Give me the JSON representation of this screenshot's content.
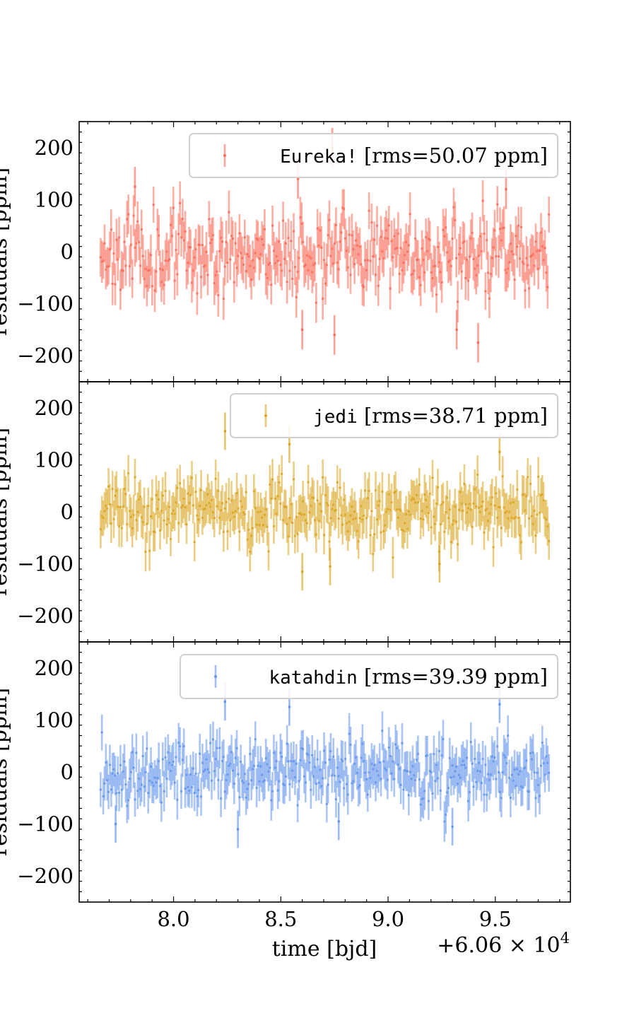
{
  "chart_data": {
    "type": "scatter",
    "layout": "three vertically stacked panels sharing the x-axis",
    "xlabel": "time [bjd]",
    "x_offset_label": "+6.06 × 10^4",
    "x_offset_text": {
      "base": "+6.06 × 10",
      "exponent": "4"
    },
    "xlim": [
      7.56,
      9.85
    ],
    "xticks": [
      8.0,
      8.5,
      9.0,
      9.5
    ],
    "xtick_labels": [
      "8.0",
      "8.5",
      "9.0",
      "9.5"
    ],
    "ylabel": "residuals [ppm]",
    "ylim": [
      -250,
      250
    ],
    "yticks": [
      -200,
      -100,
      0,
      100,
      200
    ],
    "ytick_labels": [
      "−200",
      "−100",
      "0",
      "100",
      "200"
    ],
    "legend_position": "upper right",
    "series_x_range": [
      7.66,
      9.75
    ],
    "points_per_series": 340,
    "panels": [
      {
        "name": "Eureka!",
        "legend_rms": "[rms=50.07 ppm]",
        "rms_ppm": 50.07,
        "color": "#ff6b5a",
        "seed": 11,
        "error_bar_ppm": 38,
        "outliers": [
          {
            "x": 8.74,
            "y": 200
          },
          {
            "x": 8.58,
            "y": 140
          },
          {
            "x": 8.75,
            "y": -160
          },
          {
            "x": 8.6,
            "y": -150
          },
          {
            "x": 9.42,
            "y": -175
          },
          {
            "x": 9.32,
            "y": -150
          },
          {
            "x": 7.82,
            "y": 125
          },
          {
            "x": 9.55,
            "y": 120
          }
        ]
      },
      {
        "name": "jedi",
        "legend_rms": "[rms=38.71 ppm]",
        "rms_ppm": 38.71,
        "color": "#daa520",
        "seed": 23,
        "error_bar_ppm": 36,
        "outliers": [
          {
            "x": 8.24,
            "y": 155
          },
          {
            "x": 8.54,
            "y": 130
          },
          {
            "x": 9.52,
            "y": 115
          },
          {
            "x": 8.6,
            "y": -115
          },
          {
            "x": 8.73,
            "y": -105
          },
          {
            "x": 9.24,
            "y": -100
          }
        ]
      },
      {
        "name": "katahdin",
        "legend_rms": "[rms=39.39 ppm]",
        "rms_ppm": 39.39,
        "color": "#6495ed",
        "seed": 37,
        "error_bar_ppm": 36,
        "outliers": [
          {
            "x": 8.24,
            "y": 135
          },
          {
            "x": 8.54,
            "y": 125
          },
          {
            "x": 9.52,
            "y": 130
          },
          {
            "x": 7.73,
            "y": -100
          },
          {
            "x": 8.3,
            "y": -110
          },
          {
            "x": 9.3,
            "y": -105
          },
          {
            "x": 8.77,
            "y": -95
          }
        ]
      }
    ]
  }
}
